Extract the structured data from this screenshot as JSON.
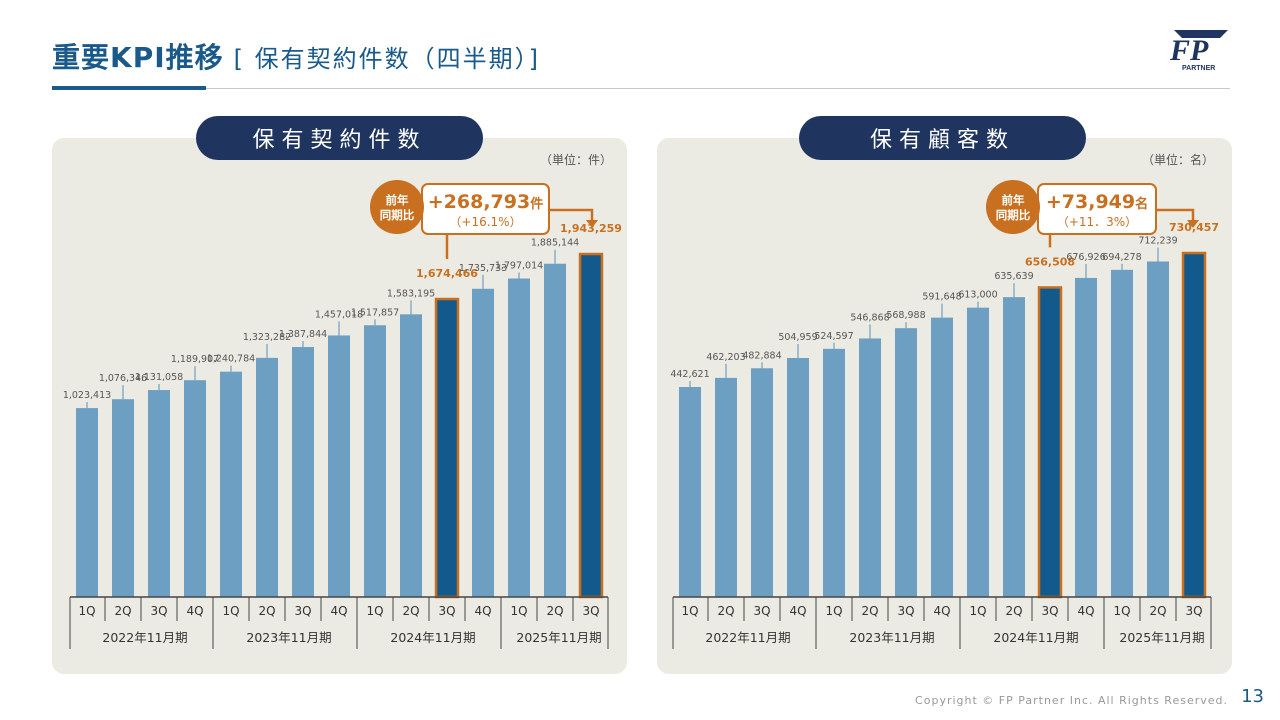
{
  "header": {
    "title_main": "重要KPI推移",
    "title_sub": "[ 保有契約件数（四半期）]"
  },
  "logo": {
    "mark": "FP",
    "text": "PARTNER"
  },
  "footer": {
    "copyright": "Copyright © FP Partner Inc. All Rights Reserved.",
    "page": "13"
  },
  "colors": {
    "bar": "#6d9fc2",
    "highlight": "#135a8c",
    "accent": "#c8701f",
    "pill": "#1f3560",
    "panel": "#ecebe3"
  },
  "charts": [
    {
      "pill": "保有契約件数",
      "unit": "（単位：件）",
      "callout": {
        "label_line1": "前年",
        "label_line2": "同期比",
        "value": "+268,793",
        "unit": "件",
        "pct": "（+16.1%）"
      },
      "chart_data": {
        "type": "bar",
        "categories": [
          "1Q",
          "2Q",
          "3Q",
          "4Q",
          "1Q",
          "2Q",
          "3Q",
          "4Q",
          "1Q",
          "2Q",
          "3Q",
          "4Q",
          "1Q",
          "2Q",
          "3Q"
        ],
        "groups": [
          "2022年11月期",
          "2023年11月期",
          "2024年11月期",
          "2025年11月期"
        ],
        "group_sizes": [
          4,
          4,
          4,
          3
        ],
        "values": [
          1023413,
          1076346,
          1131058,
          1189907,
          1240784,
          1323282,
          1387844,
          1457018,
          1517857,
          1583195,
          1674466,
          1735733,
          1797014,
          1885144,
          1943259
        ],
        "labels": [
          "1,023,413",
          "1,076,346",
          "1,131,058",
          "1,189,907",
          "1,240,784",
          "1,323,282",
          "1,387,844",
          "1,457,018",
          "1,517,857",
          "1,583,195",
          "1,674,466",
          "1,735,733",
          "1,797,014",
          "1,885,144",
          "1,943,259"
        ],
        "highlight": [
          10,
          14
        ]
      }
    },
    {
      "pill": "保有顧客数",
      "unit": "（単位：名）",
      "callout": {
        "label_line1": "前年",
        "label_line2": "同期比",
        "value": "+73,949",
        "unit": "名",
        "pct": "（+11．3%）"
      },
      "chart_data": {
        "type": "bar",
        "categories": [
          "1Q",
          "2Q",
          "3Q",
          "4Q",
          "1Q",
          "2Q",
          "3Q",
          "4Q",
          "1Q",
          "2Q",
          "3Q",
          "4Q",
          "1Q",
          "2Q",
          "3Q"
        ],
        "groups": [
          "2022年11月期",
          "2023年11月期",
          "2024年11月期",
          "2025年11月期"
        ],
        "group_sizes": [
          4,
          4,
          4,
          3
        ],
        "values": [
          442621,
          462203,
          482884,
          504959,
          524597,
          546868,
          568988,
          591648,
          613000,
          635639,
          656508,
          676926,
          694278,
          712239,
          730457
        ],
        "labels": [
          "442,621",
          "462,203",
          "482,884",
          "504,959",
          "524,597",
          "546,868",
          "568,988",
          "591,648",
          "613,000",
          "635,639",
          "656,508",
          "676,926",
          "694,278",
          "712,239",
          "730,457"
        ],
        "highlight": [
          10,
          14
        ]
      }
    }
  ]
}
